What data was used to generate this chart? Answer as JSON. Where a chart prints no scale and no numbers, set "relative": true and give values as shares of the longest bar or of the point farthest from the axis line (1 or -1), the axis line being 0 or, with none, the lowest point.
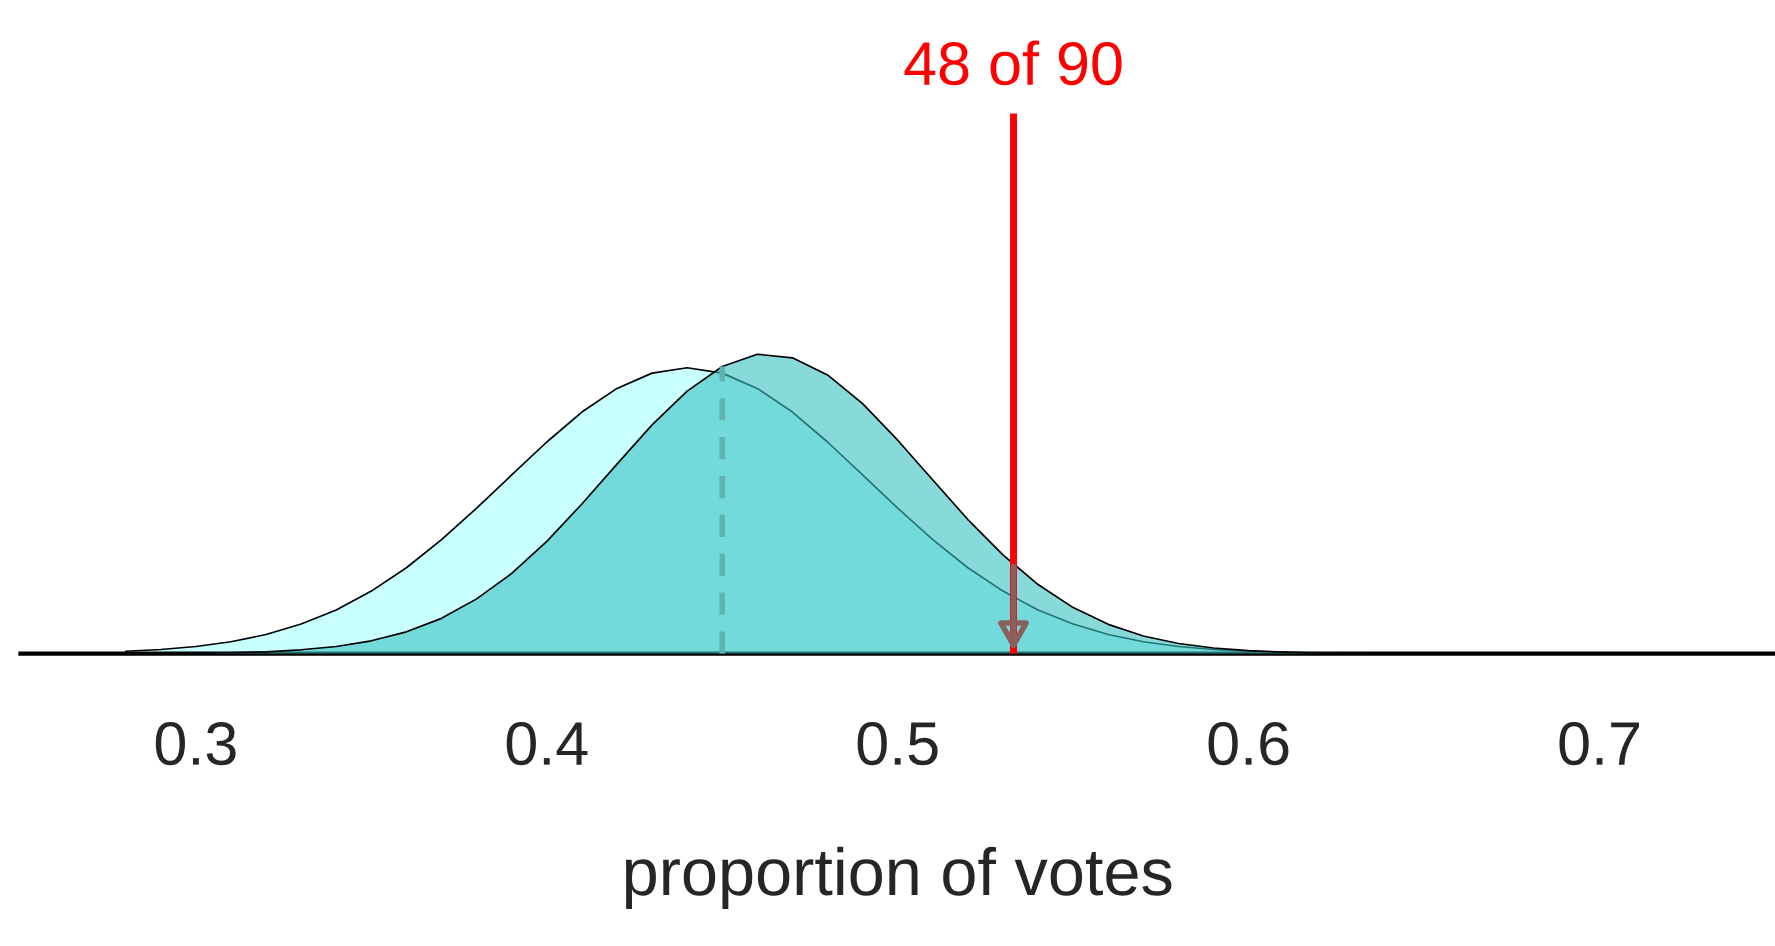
{
  "chart_data": {
    "type": "area",
    "relative": true,
    "xlabel": "proportion of votes",
    "xlim": [
      0.25,
      0.75
    ],
    "xticks": [
      0.3,
      0.4,
      0.5,
      0.6,
      0.7
    ],
    "x": [
      0.28,
      0.29,
      0.3,
      0.31,
      0.32,
      0.33,
      0.34,
      0.35,
      0.36,
      0.37,
      0.38,
      0.39,
      0.4,
      0.41,
      0.42,
      0.43,
      0.44,
      0.45,
      0.46,
      0.47,
      0.48,
      0.49,
      0.5,
      0.51,
      0.52,
      0.53,
      0.54,
      0.55,
      0.56,
      0.57,
      0.58,
      0.59,
      0.6,
      0.61,
      0.62,
      0.63,
      0.64
    ],
    "series": [
      {
        "color": "#c8ffff",
        "values": [
          0.008,
          0.014,
          0.024,
          0.04,
          0.064,
          0.099,
          0.146,
          0.209,
          0.287,
          0.381,
          0.486,
          0.597,
          0.707,
          0.807,
          0.886,
          0.937,
          0.955,
          0.937,
          0.886,
          0.807,
          0.707,
          0.597,
          0.486,
          0.381,
          0.287,
          0.209,
          0.146,
          0.099,
          0.064,
          0.04,
          0.024,
          0.014,
          0.008,
          0.004,
          0.002,
          0.001,
          0
        ]
      },
      {
        "color": "#39c1c1",
        "values": [
          0,
          0.001,
          0.001,
          0.003,
          0.006,
          0.013,
          0.024,
          0.043,
          0.073,
          0.118,
          0.183,
          0.268,
          0.375,
          0.5,
          0.633,
          0.764,
          0.877,
          0.959,
          1,
          0.988,
          0.931,
          0.835,
          0.713,
          0.58,
          0.448,
          0.33,
          0.231,
          0.154,
          0.098,
          0.059,
          0.034,
          0.019,
          0.01,
          0.005,
          0.002,
          0.001,
          0
        ]
      }
    ],
    "ref_lines": [
      {
        "axis": "x",
        "value": 0.533,
        "label": "48 of 90",
        "color": "#ff0000"
      },
      {
        "axis": "x",
        "value": 0.45,
        "color": "#5fb5ae",
        "line_style": "dashed"
      }
    ]
  }
}
